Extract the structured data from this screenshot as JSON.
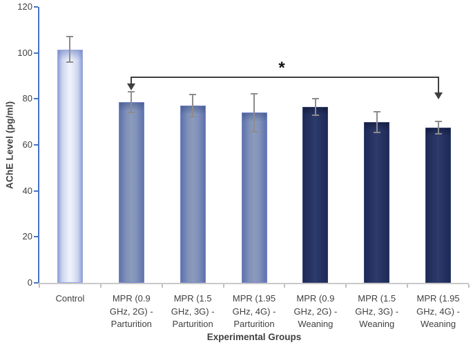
{
  "chart_data": {
    "type": "bar",
    "title": "",
    "xlabel": "Experimental Groups",
    "ylabel": "AChE Level (pg/ml)",
    "ylim": [
      0,
      120
    ],
    "yticks": [
      0,
      20,
      40,
      60,
      80,
      100,
      120
    ],
    "grid": false,
    "legend": false,
    "categories": [
      "Control",
      "MPR (0.9 GHz, 2G) - Parturition",
      "MPR (1.5 GHz, 3G) - Parturition",
      "MPR (1.95 GHz, 4G) - Parturition",
      "MPR (0.9 GHz, 2G) - Weaning",
      "MPR (1.5 GHz, 3G) - Weaning",
      "MPR (1.95 GHz, 4G) - Weaning"
    ],
    "series": [
      {
        "name": "AChE Level (pg/ml)",
        "values": [
          101.5,
          78.5,
          77,
          74,
          76.5,
          70,
          67.5
        ],
        "errors": [
          5.5,
          4.5,
          4.8,
          8.3,
          3.5,
          4.5,
          2.8
        ]
      }
    ],
    "bar_groups": [
      "control",
      "parturition",
      "parturition",
      "parturition",
      "weaning",
      "weaning",
      "weaning"
    ],
    "annotation": {
      "type": "significance-bracket",
      "symbol": "*",
      "from_category_index": 1,
      "to_category_index": 6
    },
    "colors": {
      "axis_blue": "#4472c4",
      "baseline_gray": "#c9c9c9",
      "error_bar_gray": "#8c8c8c",
      "text_gray": "#404040",
      "bracket_black": "#3f3f3f",
      "control_fill_center": "#eef1fa",
      "control_fill_edge": "#93a2d8",
      "parturition_fill_center": "#8b9abd",
      "parturition_fill_edge": "#5e71ad",
      "weaning_fill_center": "#2a3869",
      "weaning_fill_edge": "#1e2a56"
    }
  }
}
